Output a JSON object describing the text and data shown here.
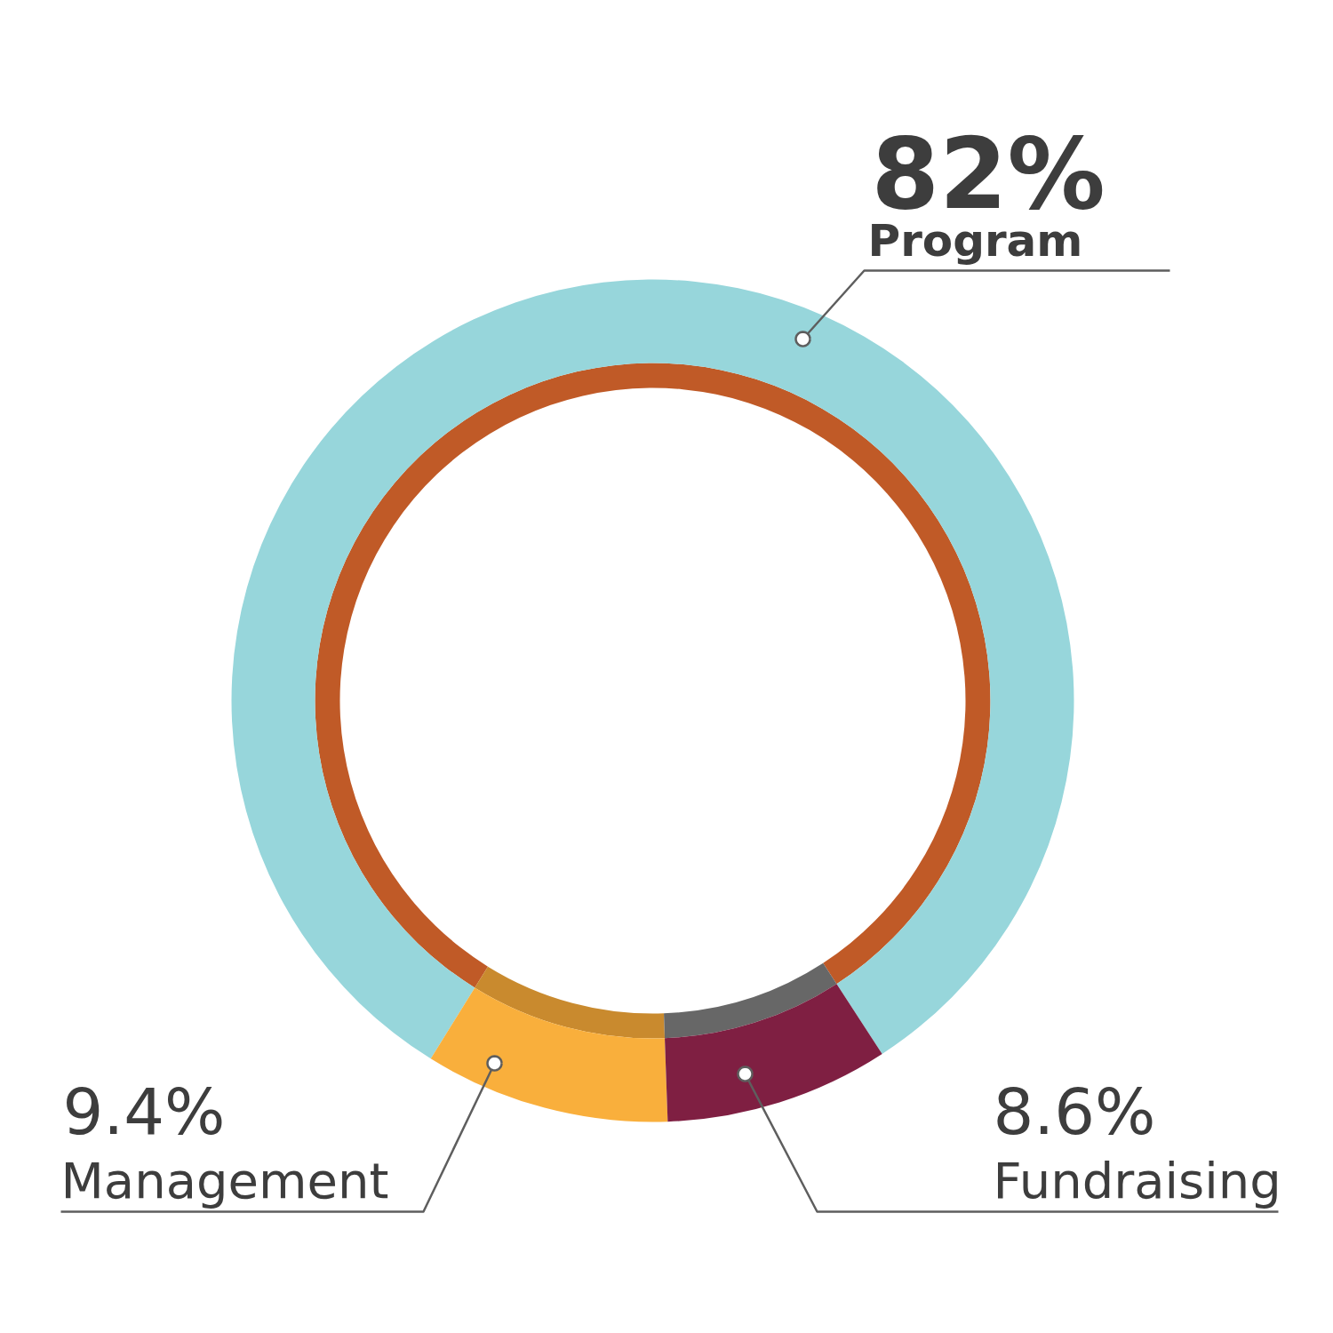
{
  "chart_data": {
    "type": "donut",
    "categories": [
      "Program",
      "Management",
      "Fundraising"
    ],
    "series": [
      {
        "values": [
          82,
          9.4,
          8.6
        ],
        "colors": [
          "#97d6db",
          "#f9af3c",
          "#7f1f42"
        ],
        "value_labels": [
          "82%",
          "9.4%",
          "8.6%"
        ]
      },
      {
        "values": [
          82,
          9.4,
          8.6
        ],
        "colors": [
          "#c05a27",
          "#c98a2e",
          "#676767"
        ]
      }
    ]
  }
}
